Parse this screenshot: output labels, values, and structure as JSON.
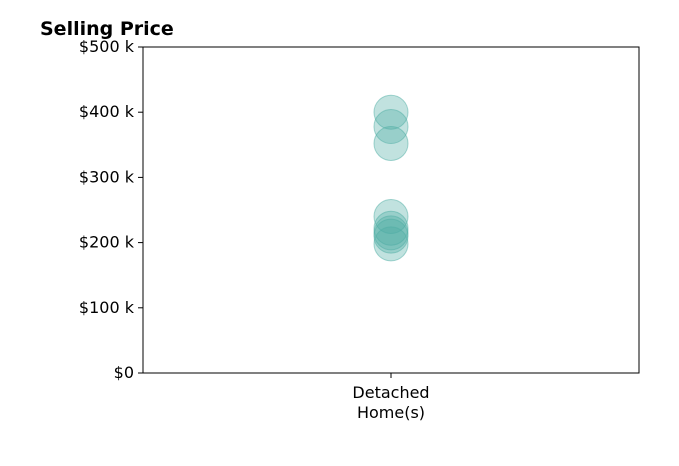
{
  "chart_data": {
    "type": "scatter",
    "title": "Selling Price",
    "xlabel": "",
    "ylabel": "",
    "categories": [
      "Detached\nHome(s)"
    ],
    "category_lines": [
      "Detached",
      "Home(s)"
    ],
    "ylim": [
      0,
      500000
    ],
    "yticks": [
      0,
      100000,
      200000,
      300000,
      400000,
      500000
    ],
    "ytick_labels": [
      "$0",
      "$100 k",
      "$200 k",
      "$300 k",
      "$400 k",
      "$500 k"
    ],
    "series": [
      {
        "values": [
          400000,
          378000,
          352000,
          240000,
          222000,
          215000,
          210000,
          198000
        ]
      }
    ],
    "marker_color": "#4dada3",
    "marker_opacity": 0.35,
    "grid": false,
    "legend": "none"
  }
}
